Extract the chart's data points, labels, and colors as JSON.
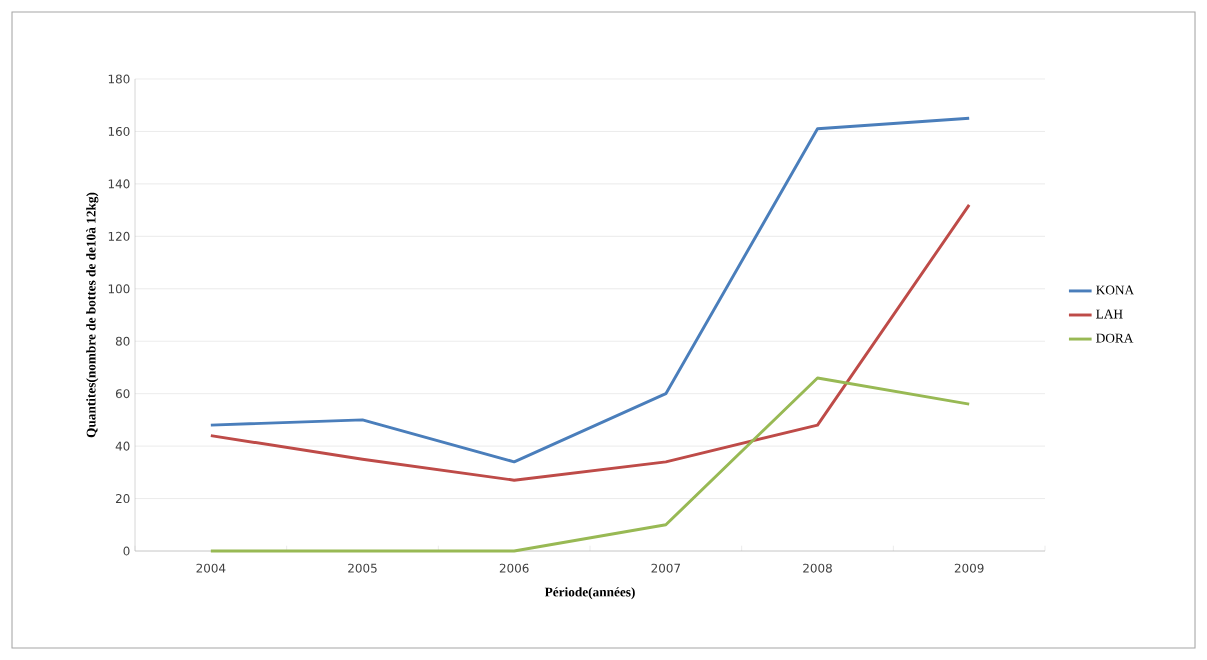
{
  "chart_data": {
    "type": "line",
    "xlabel": "Période(années)",
    "ylabel": "Quantites(nombre de bottes de de10à 12kg)",
    "categories": [
      "2004",
      "2005",
      "2006",
      "2007",
      "2008",
      "2009"
    ],
    "series": [
      {
        "name": "KONA",
        "color": "#4a7ebb",
        "values": [
          48,
          50,
          34,
          60,
          161,
          165
        ]
      },
      {
        "name": "LAH",
        "color": "#be4b48",
        "values": [
          44,
          35,
          27,
          34,
          48,
          132
        ]
      },
      {
        "name": "DORA",
        "color": "#98b954",
        "values": [
          0,
          0,
          0,
          10,
          66,
          56
        ]
      }
    ],
    "ylim": [
      0,
      180
    ],
    "yticks": [
      0,
      20,
      40,
      60,
      80,
      100,
      120,
      140,
      160,
      180
    ],
    "grid": "y",
    "legend": "right",
    "marker": "none",
    "line_style": "solid"
  }
}
